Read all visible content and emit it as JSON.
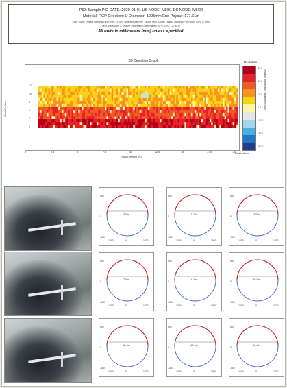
{
  "header": {
    "line1": "PID: Sample PID   DATE: 2020-01-01   US NODE: MH01   DS NODE: MH02",
    "line2": "Material: RCP   Direction: U   Diameter: 1025mm   End Payout: 177.61m",
    "line3": "Max. Some Ovaled Nominal Pipe(mm): 15.5 %   Segment Interval: 15.0 m   Max. Upper Ovaled Nominal Pipe(mm): 2025 (7 mm)",
    "line4": "Max. Reduction & Ovality: information determined: for 0.10m - 177.61m",
    "line5": "All units in millimeters (mm) unless specified."
  },
  "heatmap": {
    "title": "2D Deviation Graph",
    "ylabel": "Clock Position",
    "xlabel": "Payout, meters (m)",
    "xticks": [
      "0",
      "2.5",
      "5",
      "7.5",
      "10",
      "12.5",
      "15",
      "17.5",
      "20"
    ],
    "yticks": [
      "12",
      "10",
      "8",
      "6",
      "4",
      "2"
    ],
    "colorbar_title": "Deviation",
    "colorbar_ticks": [
      "50.0",
      "30.0",
      "10.0",
      "0.0",
      "-10.0",
      "-30.0",
      "-50.0"
    ],
    "colorbar_side": "Deviation from design, millimeters (mm)",
    "colorbar_foot": "Ovalization",
    "colors": [
      "#b3001b",
      "#e8202a",
      "#f15a24",
      "#f7941d",
      "#fcd116",
      "#fdf5a6",
      "#e6e6e6",
      "#9fd8ec",
      "#4ab0e0",
      "#1f78c8",
      "#1f3c8f"
    ]
  },
  "photos": [
    {
      "name": "photo-1"
    },
    {
      "name": "photo-2"
    },
    {
      "name": "photo-3"
    }
  ],
  "cross_sections": [
    {
      "label": "2.5m"
    },
    {
      "label": "5.0m"
    },
    {
      "label": "7.5m"
    },
    {
      "label": "7.5m"
    },
    {
      "label": "9.7m"
    },
    {
      "label": "20.0m"
    },
    {
      "label": "12.0m"
    },
    {
      "label": "15.0m"
    },
    {
      "label": "20.0m"
    }
  ],
  "cross_section_ticks": {
    "y": [
      "500",
      "0",
      "-500"
    ],
    "x": [
      "-1000",
      "0",
      "1000"
    ]
  }
}
